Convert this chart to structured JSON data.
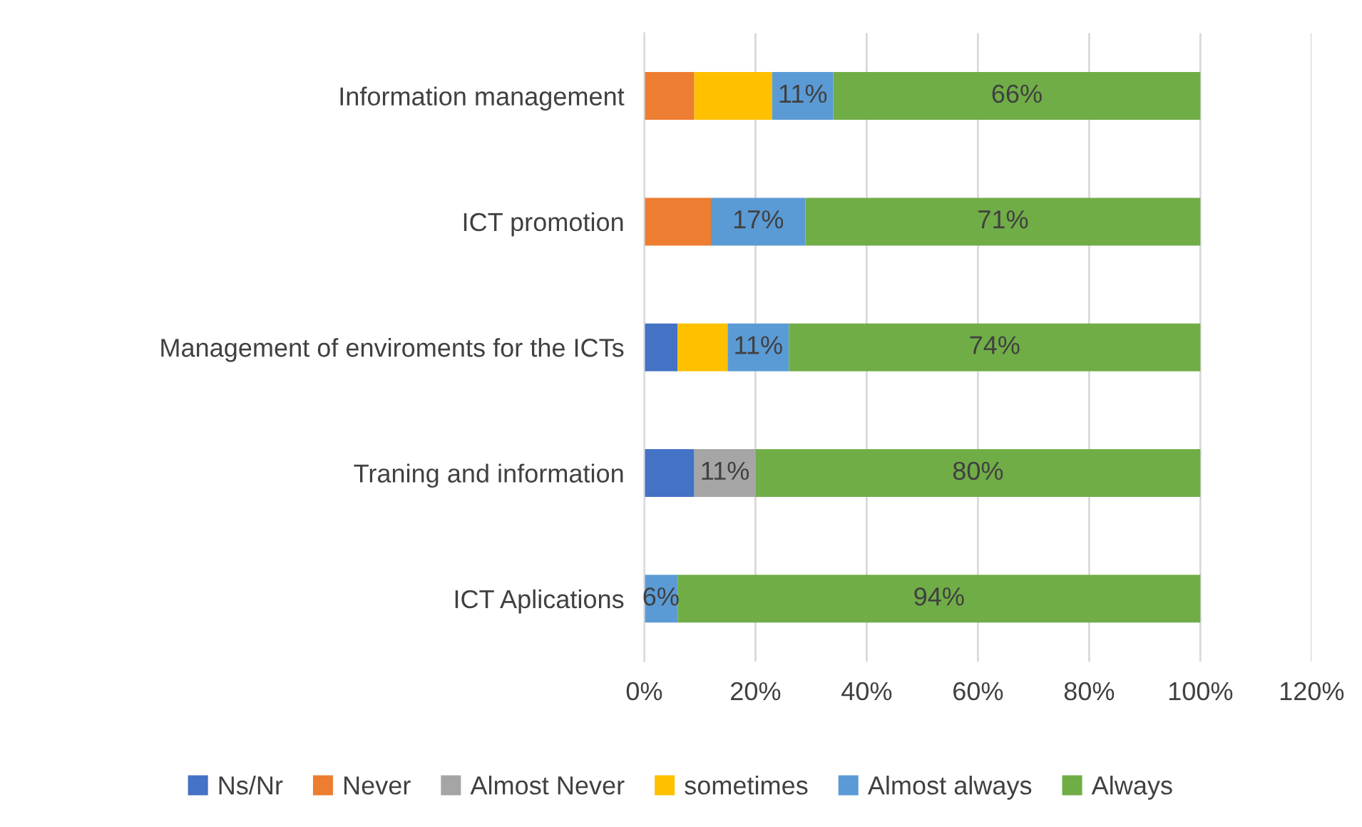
{
  "chart_data": {
    "type": "bar",
    "orientation": "horizontal",
    "stacked": true,
    "categories": [
      "Information management",
      "ICT promotion",
      "Management of enviroments for the ICTs",
      "Traning and information",
      "ICT Aplications"
    ],
    "series": [
      {
        "name": "Ns/Nr",
        "color": "#4472c4",
        "values": [
          null,
          null,
          6,
          9,
          null
        ],
        "value_labels": [
          null,
          null,
          null,
          null,
          null
        ]
      },
      {
        "name": "Never",
        "color": "#ed7d31",
        "values": [
          9,
          12,
          null,
          null,
          null
        ],
        "value_labels": [
          null,
          null,
          null,
          null,
          null
        ]
      },
      {
        "name": "Almost Never",
        "color": "#a5a5a5",
        "values": [
          null,
          null,
          null,
          11,
          null
        ],
        "value_labels": [
          null,
          null,
          null,
          "11%",
          null
        ]
      },
      {
        "name": "sometimes",
        "color": "#ffc000",
        "values": [
          14,
          null,
          9,
          null,
          null
        ],
        "value_labels": [
          null,
          null,
          null,
          null,
          null
        ]
      },
      {
        "name": "Almost always",
        "color": "#5b9bd5",
        "values": [
          11,
          17,
          11,
          null,
          6
        ],
        "value_labels": [
          "11%",
          "17%",
          "11%",
          null,
          "6%"
        ]
      },
      {
        "name": "Always",
        "color": "#70ad47",
        "values": [
          66,
          71,
          74,
          80,
          94
        ],
        "value_labels": [
          "66%",
          "71%",
          "74%",
          "80%",
          "94%"
        ]
      }
    ],
    "xlim": [
      0,
      120
    ],
    "xticks": [
      {
        "value": 0,
        "label": "0%"
      },
      {
        "value": 20,
        "label": "20%"
      },
      {
        "value": 40,
        "label": "40%"
      },
      {
        "value": 60,
        "label": "60%"
      },
      {
        "value": 80,
        "label": "80%"
      },
      {
        "value": 100,
        "label": "100%"
      },
      {
        "value": 120,
        "label": "120%"
      }
    ],
    "grid": "x",
    "legend": "bottom"
  }
}
